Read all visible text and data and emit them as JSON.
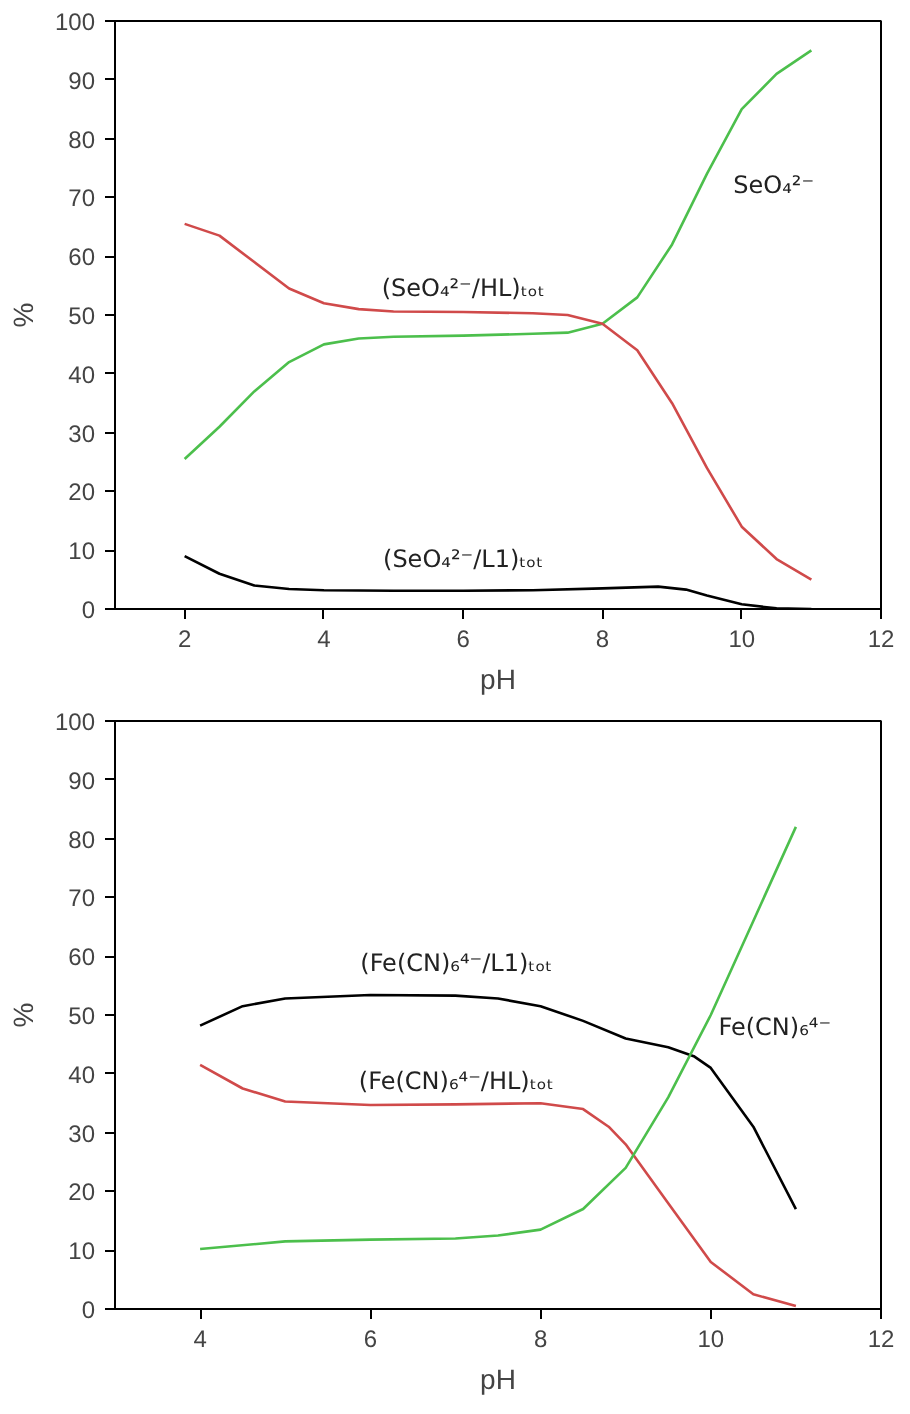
{
  "chart_data": [
    {
      "type": "line",
      "xlabel": "pH",
      "ylabel": "%",
      "xlim": [
        1,
        12
      ],
      "ylim": [
        0,
        100
      ],
      "xticks": [
        2,
        4,
        6,
        8,
        10,
        12
      ],
      "yticks": [
        0,
        10,
        20,
        30,
        40,
        50,
        60,
        70,
        80,
        90,
        100
      ],
      "grid": false,
      "legend": false,
      "series": [
        {
          "name": "SeO₄²⁻",
          "color": "#4cbf4c",
          "x": [
            2,
            2.5,
            3,
            3.5,
            4,
            4.5,
            5,
            6,
            7,
            7.5,
            8,
            8.5,
            9,
            9.5,
            10,
            10.5,
            11
          ],
          "values": [
            25.5,
            31,
            37,
            42,
            45,
            46,
            46.3,
            46.5,
            46.8,
            47,
            48.5,
            53,
            62,
            74,
            85,
            91,
            95
          ]
        },
        {
          "name": "(SeO₄²⁻/HL)ₜₒₜ",
          "color": "#d04a4a",
          "x": [
            2,
            2.5,
            3,
            3.5,
            4,
            4.5,
            5,
            6,
            7,
            7.5,
            8,
            8.5,
            9,
            9.5,
            10,
            10.5,
            11
          ],
          "values": [
            65.5,
            63.5,
            59,
            54.5,
            52,
            51,
            50.6,
            50.5,
            50.3,
            50,
            48.5,
            44,
            35,
            24,
            14,
            8.5,
            5
          ]
        },
        {
          "name": "(SeO₄²⁻/L1)ₜₒₜ",
          "color": "#000000",
          "x": [
            2,
            2.5,
            3,
            3.5,
            4,
            5,
            6,
            7,
            8,
            8.8,
            9.2,
            9.5,
            10,
            10.5,
            11
          ],
          "values": [
            9,
            6,
            4,
            3.4,
            3.2,
            3.1,
            3.1,
            3.2,
            3.5,
            3.8,
            3.3,
            2.3,
            0.8,
            0.1,
            0
          ]
        }
      ]
    },
    {
      "type": "line",
      "xlabel": "pH",
      "ylabel": "%",
      "xlim": [
        3,
        12
      ],
      "ylim": [
        0,
        100
      ],
      "xticks": [
        4,
        6,
        8,
        10,
        12
      ],
      "yticks": [
        0,
        10,
        20,
        30,
        40,
        50,
        60,
        70,
        80,
        90,
        100
      ],
      "grid": false,
      "legend": false,
      "series": [
        {
          "name": "(Fe(CN)₆⁴⁻/L1)ₜₒₜ",
          "color": "#000000",
          "x": [
            4,
            4.5,
            5,
            6,
            7,
            7.5,
            8,
            8.5,
            9,
            9.5,
            9.8,
            10,
            10.5,
            11
          ],
          "values": [
            48.2,
            51.5,
            52.8,
            53.4,
            53.3,
            52.8,
            51.5,
            49,
            46,
            44.5,
            43,
            41,
            31,
            17
          ]
        },
        {
          "name": "(Fe(CN)₆⁴⁻/HL)ₜₒₜ",
          "color": "#d04a4a",
          "x": [
            4,
            4.5,
            5,
            6,
            7,
            8,
            8.5,
            8.8,
            9,
            9.5,
            10,
            10.5,
            11
          ],
          "values": [
            41.5,
            37.5,
            35.3,
            34.7,
            34.8,
            35,
            34,
            31,
            28,
            18,
            8,
            2.5,
            0.5
          ]
        },
        {
          "name": "Fe(CN)₆⁴⁻",
          "color": "#4cbf4c",
          "x": [
            4,
            5,
            6,
            7,
            7.5,
            8,
            8.5,
            9,
            9.5,
            10,
            10.5,
            11
          ],
          "values": [
            10.2,
            11.5,
            11.8,
            12,
            12.5,
            13.5,
            17,
            24,
            36,
            50,
            66,
            82
          ]
        }
      ]
    }
  ]
}
